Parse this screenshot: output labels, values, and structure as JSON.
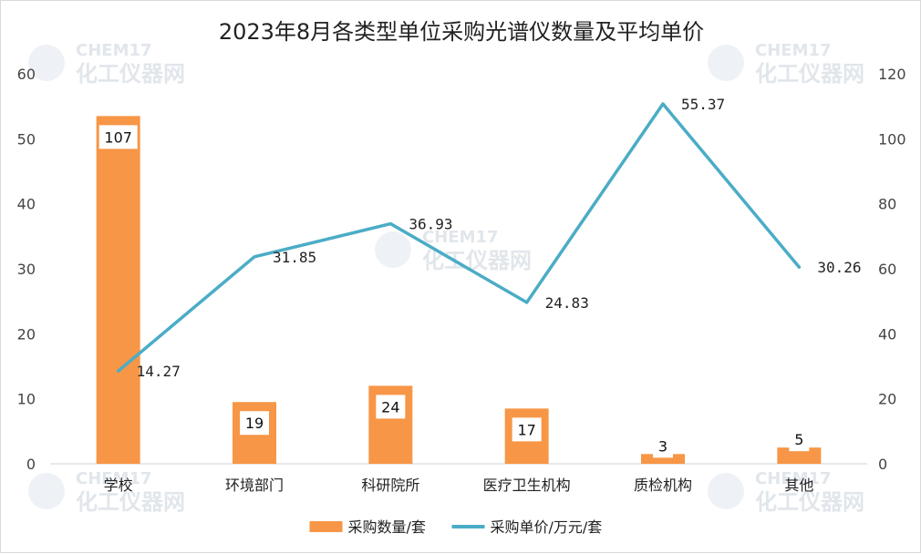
{
  "chart_data": {
    "type": "bar+line",
    "title": "2023年8月各类型单位采购光谱仪数量及平均单价",
    "categories": [
      "学校",
      "环境部门",
      "科研院所",
      "医疗卫生机构",
      "质检机构",
      "其他"
    ],
    "series": [
      {
        "name": "采购数量/套",
        "type": "bar",
        "axis": "right",
        "color": "#f79646",
        "values": [
          107,
          19,
          24,
          17,
          3,
          5
        ]
      },
      {
        "name": "采购单价/万元/套",
        "type": "line",
        "axis": "left",
        "color": "#4bacc6",
        "values": [
          14.27,
          31.85,
          36.93,
          24.83,
          55.37,
          30.26
        ],
        "labels": [
          "14.27",
          "31.85",
          "36.93",
          "24.83",
          "55.37",
          "30.26"
        ]
      }
    ],
    "y_left": {
      "ticks": [
        0,
        10,
        20,
        30,
        40,
        50,
        60
      ],
      "ylim": [
        0,
        60
      ]
    },
    "y_right": {
      "ticks": [
        0,
        20,
        40,
        60,
        80,
        100,
        120
      ],
      "ylim": [
        0,
        120
      ]
    },
    "grid": false,
    "legend": "bottom"
  },
  "watermark": {
    "brand": "CHEM17",
    "tagline": "化工仪器网"
  }
}
